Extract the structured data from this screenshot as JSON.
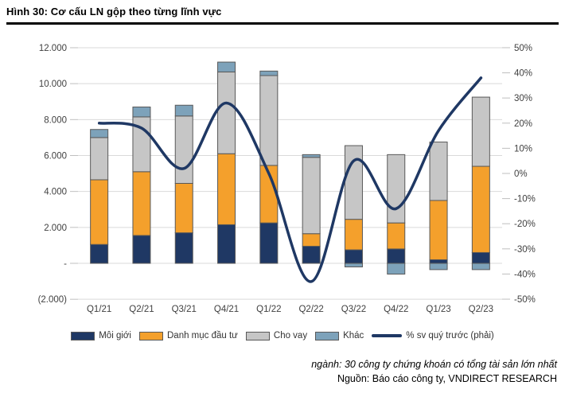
{
  "figure": {
    "title": "Hình 30: Cơ cấu LN gộp theo từng lĩnh vực",
    "footnote_industry": "ngành: 30 công ty chứng khoán có tổng tài sản lớn nhất",
    "footnote_source": "Nguồn: Báo cáo công ty, VNDIRECT RESEARCH"
  },
  "colors": {
    "broker_navy": "#1f3864",
    "portfolio_orange": "#f4a02c",
    "lending_gray": "#c6c6c6",
    "other_bluegray": "#7da2ba",
    "trend_line": "#1f3864",
    "bar_border": "#595959",
    "gridline": "#d9d9d9",
    "tick": "#bfbfbf",
    "axis_text": "#404040"
  },
  "chart_data": {
    "type": "bar",
    "subtype": "stacked-column-with-line",
    "categories": [
      "Q1/21",
      "Q2/21",
      "Q3/21",
      "Q4/21",
      "Q1/22",
      "Q2/22",
      "Q3/22",
      "Q4/22",
      "Q1/23",
      "Q2/23"
    ],
    "series": [
      {
        "name": "Môi giới",
        "color": "#1f3864",
        "values": [
          1050,
          1550,
          1700,
          2150,
          2250,
          950,
          750,
          800,
          200,
          600
        ]
      },
      {
        "name": "Danh mục đầu tư",
        "color": "#f4a02c",
        "values": [
          3600,
          3550,
          2750,
          3950,
          3200,
          700,
          1700,
          1450,
          3300,
          4800
        ]
      },
      {
        "name": "Cho vay",
        "color": "#c6c6c6",
        "values": [
          2350,
          3050,
          3750,
          4550,
          5000,
          4250,
          4100,
          3800,
          3250,
          3850
        ]
      },
      {
        "name": "Khác",
        "color": "#7da2ba",
        "values": [
          450,
          550,
          600,
          550,
          250,
          150,
          -200,
          -600,
          -350,
          -350
        ]
      }
    ],
    "line_series": {
      "name": "% sv quý trước (phải)",
      "axis": "right",
      "color": "#1f3864",
      "values": [
        20,
        18,
        2,
        28,
        0,
        -43,
        5,
        -14,
        17,
        38
      ]
    },
    "axes": {
      "left": {
        "min": -2000,
        "max": 12000,
        "step": 2000,
        "tick_values": [
          12000,
          10000,
          8000,
          6000,
          4000,
          2000,
          0,
          -2000
        ],
        "tick_labels": [
          "12.000",
          "10.000",
          "8.000",
          "6.000",
          "4.000",
          "2.000",
          "-",
          "(2.000)"
        ]
      },
      "right": {
        "min": -50,
        "max": 50,
        "step": 10,
        "tick_values": [
          50,
          40,
          30,
          20,
          10,
          0,
          -10,
          -20,
          -30,
          -40,
          -50
        ],
        "tick_labels": [
          "50%",
          "40%",
          "30%",
          "20%",
          "10%",
          "0%",
          "-10%",
          "-20%",
          "-30%",
          "-40%",
          "-50%"
        ]
      }
    },
    "grid": "horizontal",
    "legend_position": "bottom",
    "legend": [
      {
        "label": "Môi giới",
        "swatch": "box",
        "color": "#1f3864"
      },
      {
        "label": "Danh mục đầu tư",
        "swatch": "box",
        "color": "#f4a02c"
      },
      {
        "label": "Cho vay",
        "swatch": "box",
        "color": "#c6c6c6"
      },
      {
        "label": "Khác",
        "swatch": "box",
        "color": "#7da2ba"
      },
      {
        "label": "% sv quý trước (phải)",
        "swatch": "line",
        "color": "#1f3864"
      }
    ]
  }
}
